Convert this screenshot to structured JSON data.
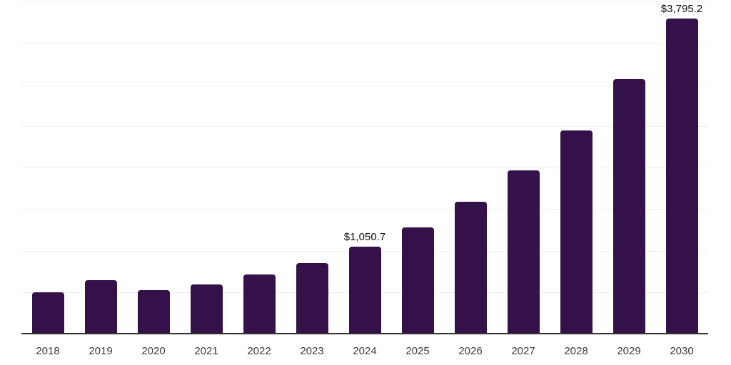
{
  "chart_data": {
    "type": "bar",
    "title": "",
    "xlabel": "",
    "ylabel": "",
    "categories": [
      "2018",
      "2019",
      "2020",
      "2021",
      "2022",
      "2023",
      "2024",
      "2025",
      "2026",
      "2027",
      "2028",
      "2029",
      "2030"
    ],
    "values": [
      495,
      640,
      520,
      595,
      715,
      850,
      1050.7,
      1280,
      1585,
      1965,
      2445,
      3065,
      3795.2
    ],
    "data_labels": [
      "",
      "",
      "",
      "",
      "",
      "",
      "$1,050.7",
      "",
      "",
      "",
      "",
      "",
      "$3,795.2"
    ],
    "ylim": [
      0,
      4000
    ],
    "gridline_interval": 500,
    "grid": true,
    "legend_position": "none",
    "bar_color": "#341249",
    "gridline_color": "#efefef",
    "axis_line_color": "#333333",
    "tick_label_color": "#3c3c3c",
    "data_label_color": "#111111",
    "background_color": "#ffffff"
  }
}
